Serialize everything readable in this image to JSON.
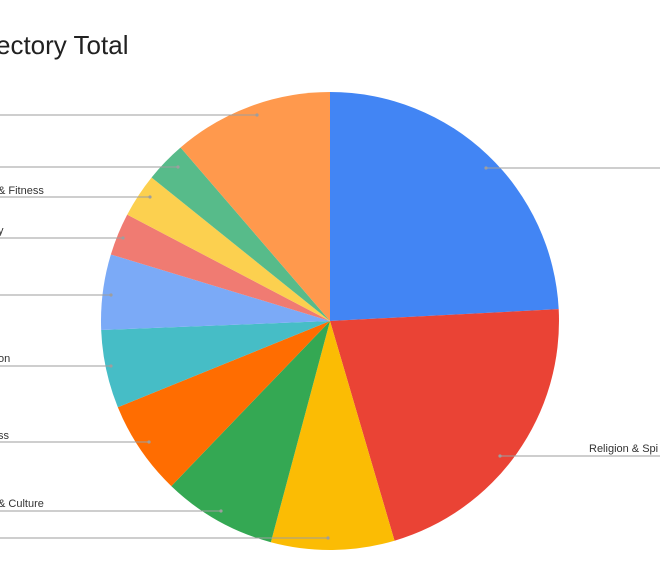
{
  "chart_data": {
    "type": "pie",
    "title": "ectory Total",
    "slices": [
      {
        "label": "",
        "value": 25,
        "color": "#4285f4"
      },
      {
        "label": "Religion & Spi",
        "value": 22,
        "color": "#ea4335"
      },
      {
        "label": "",
        "value": 9,
        "color": "#fbbc04"
      },
      {
        "label": "& Culture",
        "value": 8.3,
        "color": "#34a853"
      },
      {
        "label": "ss",
        "value": 6.9,
        "color": "#ff6d01"
      },
      {
        "label": "on",
        "value": 5.7,
        "color": "#46bdc6"
      },
      {
        "label": "",
        "value": 5.5,
        "color": "#7baaf7"
      },
      {
        "label": "y",
        "value": 3.1,
        "color": "#f07b72"
      },
      {
        "label": "& Fitness",
        "value": 3.2,
        "color": "#fcd04f"
      },
      {
        "label": "",
        "value": 3.0,
        "color": "#57bb8a"
      },
      {
        "label": "",
        "value": 11.7,
        "color": "#ff994d"
      }
    ],
    "legend": "none",
    "start_angle": "12 o'clock",
    "direction": "clockwise"
  }
}
